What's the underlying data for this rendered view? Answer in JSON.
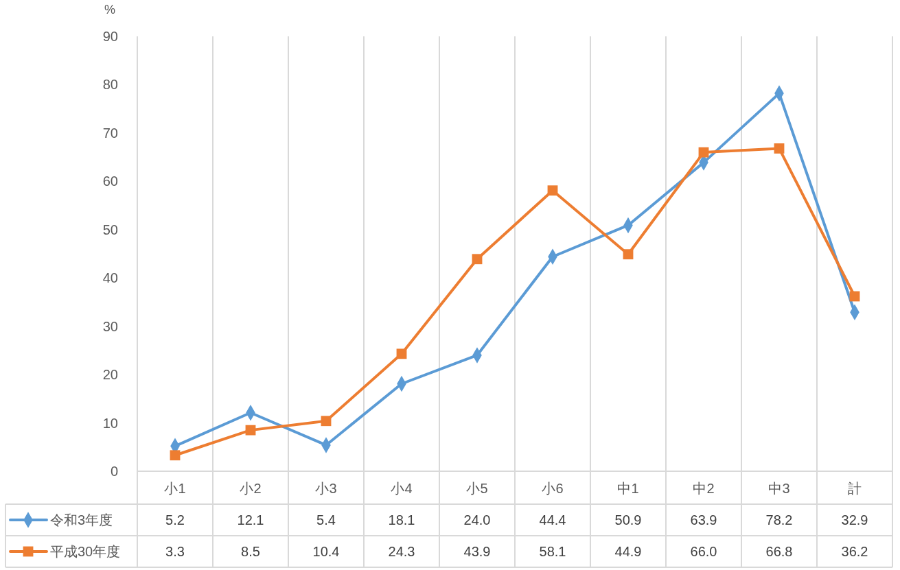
{
  "chart_data": {
    "type": "line",
    "ylabel": "%",
    "categories": [
      "小1",
      "小2",
      "小3",
      "小4",
      "小5",
      "小6",
      "中1",
      "中2",
      "中3",
      "計"
    ],
    "series": [
      {
        "name": "令和3年度",
        "color": "#5b9bd5",
        "marker": "diamond",
        "values": [
          5.2,
          12.1,
          5.4,
          18.1,
          24.0,
          44.4,
          50.9,
          63.9,
          78.2,
          32.9
        ],
        "value_labels": [
          "5.2",
          "12.1",
          "5.4",
          "18.1",
          "24.0",
          "44.4",
          "50.9",
          "63.9",
          "78.2",
          "32.9"
        ]
      },
      {
        "name": "平成30年度",
        "color": "#ed7d31",
        "marker": "square",
        "values": [
          3.3,
          8.5,
          10.4,
          24.3,
          43.9,
          58.1,
          44.9,
          66.0,
          66.8,
          36.2
        ],
        "value_labels": [
          "3.3",
          "8.5",
          "10.4",
          "24.3",
          "43.9",
          "58.1",
          "44.9",
          "66.0",
          "66.8",
          "36.2"
        ]
      }
    ],
    "ylim": [
      0,
      90
    ],
    "yticks": [
      0,
      10,
      20,
      30,
      40,
      50,
      60,
      70,
      80,
      90
    ],
    "grid": "x",
    "legend": "bottom"
  }
}
